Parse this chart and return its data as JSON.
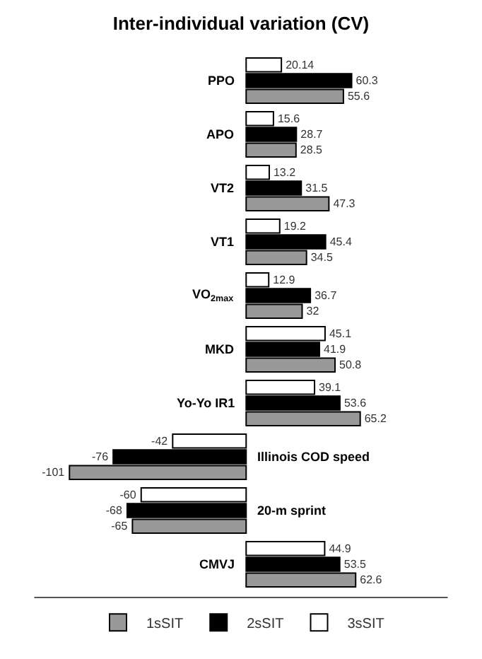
{
  "chart_data": {
    "type": "bar",
    "orientation": "horizontal",
    "title": "Inter-individual variation (CV)",
    "categories": [
      "PPO",
      "APO",
      "VT2",
      "VT1",
      "VO$_{2max}$",
      "MKD",
      "Yo-Yo IR1",
      "Illinois COD speed",
      "20-m sprint",
      "CMVJ"
    ],
    "series": [
      {
        "name": "1sSIT",
        "color": "#999999",
        "values": [
          55.6,
          28.5,
          47.3,
          34.5,
          32,
          50.8,
          65.2,
          -101,
          -65,
          62.6
        ]
      },
      {
        "name": "2sSIT",
        "color": "#000000",
        "values": [
          60.3,
          28.7,
          31.5,
          45.4,
          36.7,
          41.9,
          53.6,
          -76,
          -68,
          53.5
        ]
      },
      {
        "name": "3sSIT",
        "color": "#ffffff",
        "values": [
          20.14,
          15.6,
          13.2,
          19.2,
          12.9,
          45.1,
          39.1,
          -42,
          -60,
          44.9
        ]
      }
    ],
    "data_labels": true,
    "legend": "bottom",
    "tick_labels": false
  }
}
